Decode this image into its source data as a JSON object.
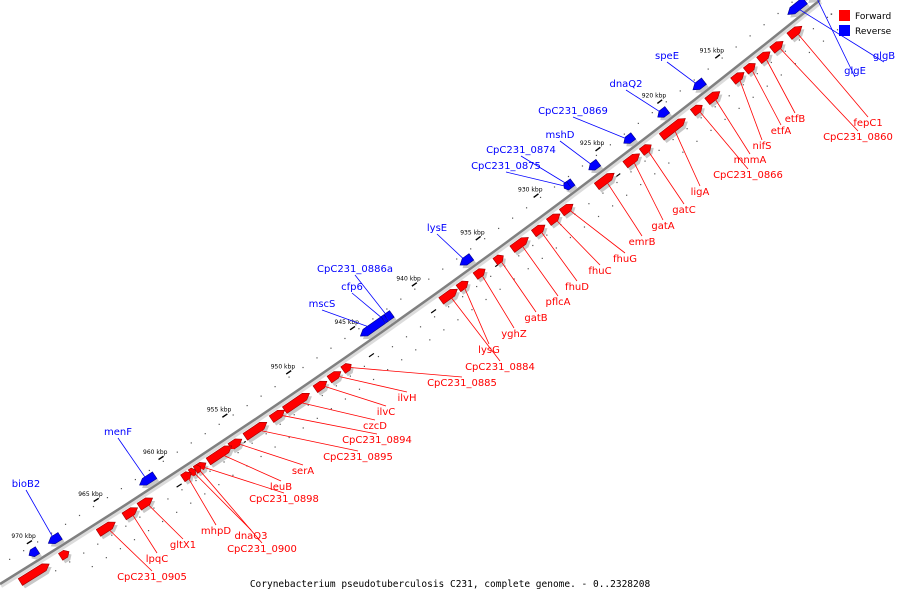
{
  "caption": "Corynebacterium pseudotuberculosis C231, complete genome. - 0..2328208",
  "legend": {
    "forward": {
      "label": "Forward",
      "color": "#ff0000"
    },
    "reverse": {
      "label": "Reverse",
      "color": "#0000ff"
    }
  },
  "backbone_color": "#808080",
  "ticks": [
    "915 kbp",
    "920 kbp",
    "925 kbp",
    "930 kbp",
    "935 kbp",
    "940 kbp",
    "945 kbp",
    "950 kbp",
    "955 kbp",
    "960 kbp",
    "965 kbp",
    "970 kbp"
  ],
  "reverse_genes": [
    "glgB",
    "glgE",
    "speE",
    "dnaQ2",
    "CpC231_0869",
    "mshD",
    "CpC231_0874",
    "CpC231_0875",
    "lysE",
    "CpC231_0886a",
    "cfp6",
    "mscS",
    "menF",
    "bioB2"
  ],
  "forward_genes": [
    "fepC1",
    "CpC231_0860",
    "etfB",
    "etfA",
    "nifS",
    "mnmA",
    "CpC231_0866",
    "ligA",
    "gatC",
    "gatA",
    "emrB",
    "fhuG",
    "fhuC",
    "fhuD",
    "pflcA",
    "gatB",
    "yghZ",
    "lysG",
    "CpC231_0884",
    "CpC231_0885",
    "ilvH",
    "ilvC",
    "czcD",
    "CpC231_0894",
    "CpC231_0895",
    "serA",
    "leuB",
    "CpC231_0898",
    "dnaQ3",
    "CpC231_0900",
    "mhpD",
    "gltX1",
    "lpqC",
    "CpC231_0905"
  ]
}
